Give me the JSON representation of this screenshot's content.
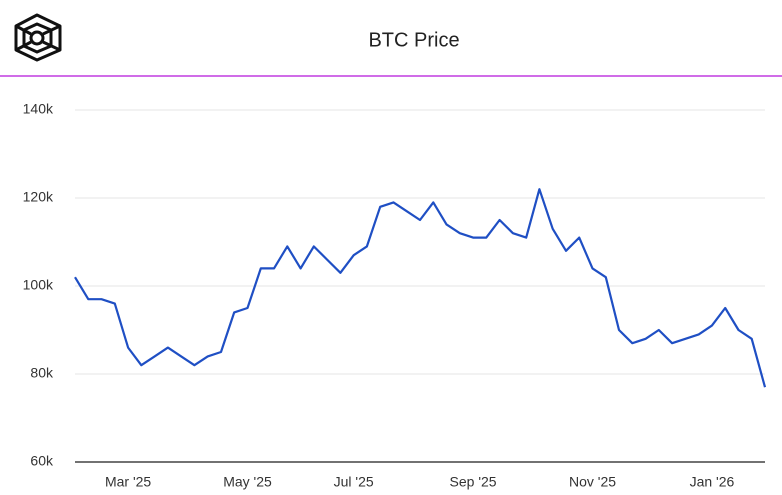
{
  "chart_data": {
    "type": "line",
    "title": "BTC Price",
    "categories": [
      null,
      null,
      null,
      null,
      "Mar '25",
      null,
      null,
      null,
      null,
      null,
      null,
      null,
      null,
      "May '25",
      null,
      null,
      null,
      null,
      null,
      null,
      null,
      "Jul '25",
      null,
      null,
      null,
      null,
      null,
      null,
      null,
      null,
      "Sep '25",
      null,
      null,
      null,
      null,
      null,
      null,
      null,
      null,
      "Nov '25",
      null,
      null,
      null,
      null,
      null,
      null,
      null,
      null,
      "Jan '26",
      null,
      null,
      null,
      null
    ],
    "series": [
      {
        "name": "BTC",
        "color": "#1f4fc4",
        "values": [
          102000,
          97000,
          97000,
          96000,
          86000,
          82000,
          84000,
          86000,
          84000,
          82000,
          84000,
          85000,
          94000,
          95000,
          104000,
          104000,
          109000,
          104000,
          109000,
          106000,
          103000,
          107000,
          109000,
          118000,
          119000,
          117000,
          115000,
          119000,
          114000,
          112000,
          111000,
          111000,
          115000,
          112000,
          111000,
          122000,
          113000,
          108000,
          111000,
          104000,
          102000,
          90000,
          87000,
          88000,
          90000,
          87000,
          88000,
          89000,
          91000,
          95000,
          90000,
          88000,
          77000
        ]
      }
    ],
    "ylim": [
      60000,
      140000
    ],
    "yticks": [
      {
        "value": 60000,
        "label": "60k"
      },
      {
        "value": 80000,
        "label": "80k"
      },
      {
        "value": 100000,
        "label": "100k"
      },
      {
        "value": 120000,
        "label": "120k"
      },
      {
        "value": 140000,
        "label": "140k"
      }
    ],
    "grid": true
  }
}
